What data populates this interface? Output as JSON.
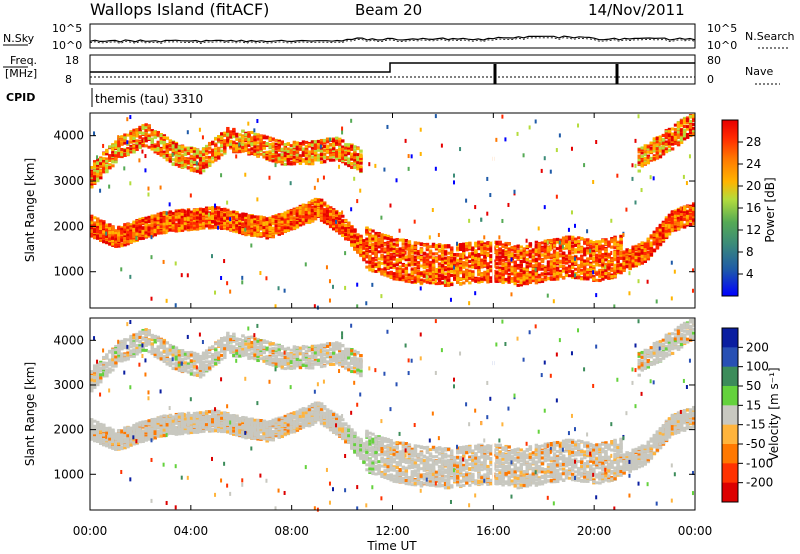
{
  "header": {
    "station": "Wallops Island (fitACF)",
    "beam": "Beam 20",
    "date": "14/Nov/2011"
  },
  "status_panels": {
    "nsky_label": "N.Sky",
    "nsearch_label": "N.Search",
    "freq_label_line1": "Freq.",
    "freq_label_line2": "[MHz]",
    "nave_label": "Nave",
    "cpid_label": "CPID",
    "cpid_value": "themis (tau) 3310",
    "noise_ticks_left": [
      "10^5",
      "10^0"
    ],
    "noise_ticks_right": [
      "10^5",
      "10^0"
    ],
    "freq_ticks": [
      "18",
      "8"
    ],
    "nave_ticks": [
      "80",
      "0"
    ]
  },
  "chart_data": [
    {
      "type": "heatmap",
      "name": "power",
      "ylabel": "Slant Range [km]",
      "yticks": [
        "1000",
        "2000",
        "3000",
        "4000"
      ],
      "ylim": [
        200,
        4500
      ],
      "colorbar_label": "Power [dB]",
      "colorbar_ticks": [
        "4",
        "8",
        "12",
        "16",
        "20",
        "24",
        "28"
      ],
      "colorbar_colors": [
        "#0000ff",
        "#1e5aa8",
        "#3c8c78",
        "#55aa55",
        "#b4dc3c",
        "#ffb400",
        "#ff7800",
        "#ff2800",
        "#e60000"
      ],
      "lower_echo_band_km": [
        1900,
        1650,
        1850,
        2000,
        2050,
        2100,
        1950,
        1850,
        2050,
        2300,
        1900,
        1250,
        1050,
        950,
        900,
        950,
        1000,
        900,
        1000,
        1100,
        1000,
        1100,
        1350,
        2000,
        2200
      ],
      "upper_echo_band_km": [
        3200,
        3800,
        4100,
        3700,
        3500,
        4000,
        3900,
        3700,
        3700,
        3800,
        3500
      ]
    },
    {
      "type": "heatmap",
      "name": "velocity",
      "ylabel": "Slant Range [km]",
      "yticks": [
        "1000",
        "2000",
        "3000",
        "4000"
      ],
      "ylim": [
        200,
        4500
      ],
      "colorbar_label": "Velocity [m s⁻¹]",
      "colorbar_ticks": [
        "200",
        "100",
        "50",
        "15",
        "-15",
        "-50",
        "-100",
        "-200"
      ],
      "colorbar_colors": [
        "#0a1ea0",
        "#2850b4",
        "#3c8c5a",
        "#64d23c",
        "#c8c8c0",
        "#ffb43c",
        "#ff7800",
        "#ff3200",
        "#dc0000"
      ]
    }
  ],
  "xaxis": {
    "label": "Time UT",
    "ticks": [
      "00:00",
      "04:00",
      "08:00",
      "12:00",
      "16:00",
      "20:00",
      "00:00"
    ]
  }
}
